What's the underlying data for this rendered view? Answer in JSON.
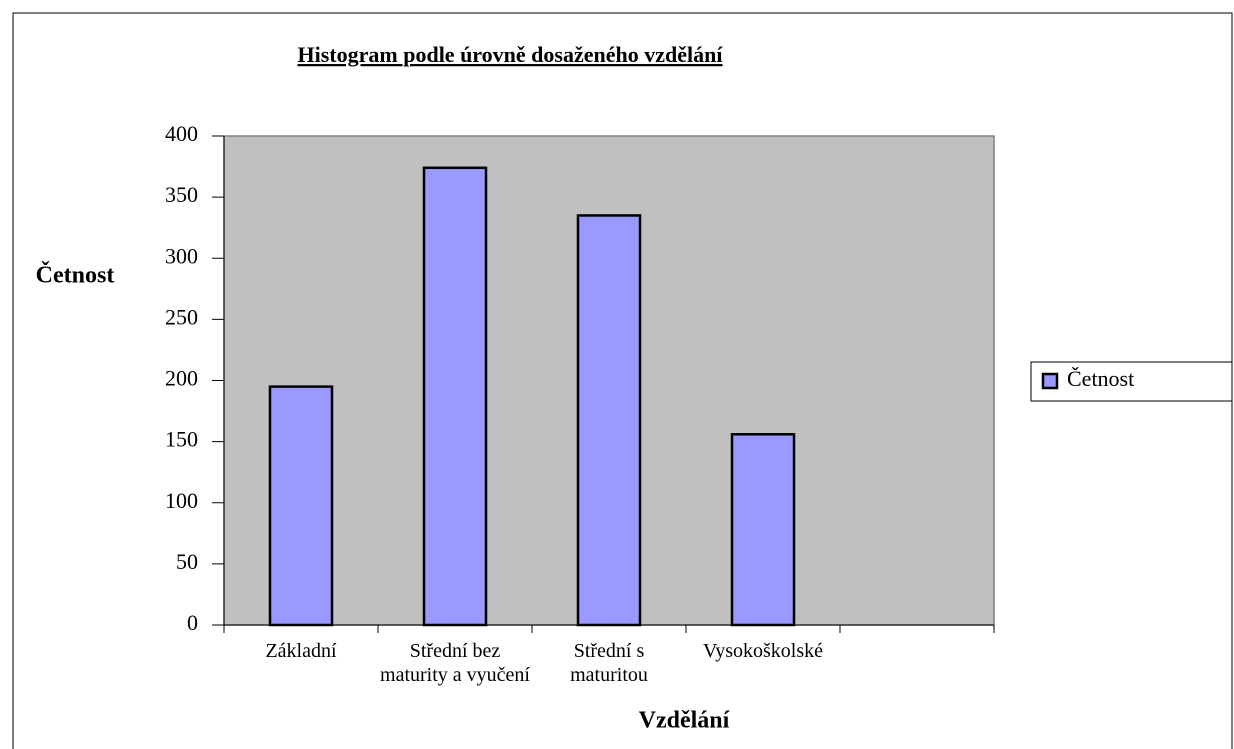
{
  "chart_data": {
    "type": "bar",
    "title": "Histogram podle úrovně dosaženého vzdělání",
    "x_label": "Vzdělání",
    "y_label": "Četnost",
    "categories": [
      "Základní",
      "Střední bez maturity a vyučení",
      "Střední s maturitou",
      "Vysokoškolské",
      null
    ],
    "series": [
      {
        "name": "Četnost",
        "color": "#9999ff",
        "values": [
          195,
          374,
          335,
          156,
          null
        ]
      }
    ],
    "ylim": [
      0,
      400
    ],
    "yticks": [
      0,
      50,
      100,
      150,
      200,
      250,
      300,
      350,
      400
    ],
    "grid": false,
    "legend": "right"
  }
}
